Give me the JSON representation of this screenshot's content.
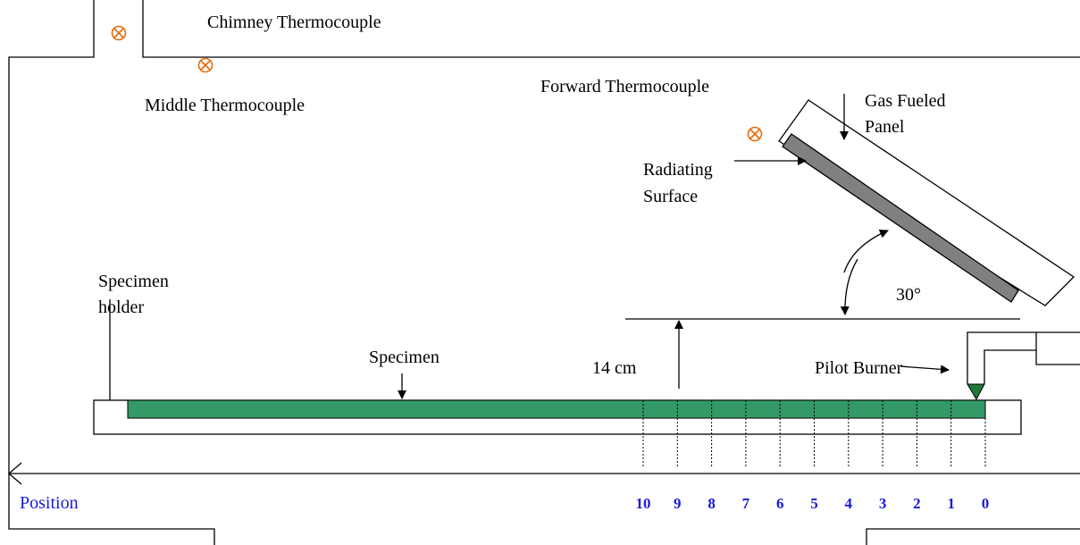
{
  "labels": {
    "chimney": "Chimney Thermocouple",
    "middle": "Middle Thermocouple",
    "forward": "Forward Thermocouple",
    "gas_fueled_1": "Gas Fueled",
    "gas_fueled_2": "Panel",
    "radiating_1": "Radiating",
    "radiating_2": "Surface",
    "holder_1": "Specimen",
    "holder_2": "holder",
    "specimen": "Specimen",
    "distance": "14 cm",
    "pilot": "Pilot Burner",
    "angle": "30°",
    "position": "Position"
  },
  "position_ticks": [
    10,
    9,
    8,
    7,
    6,
    5,
    4,
    3,
    2,
    1,
    0
  ]
}
